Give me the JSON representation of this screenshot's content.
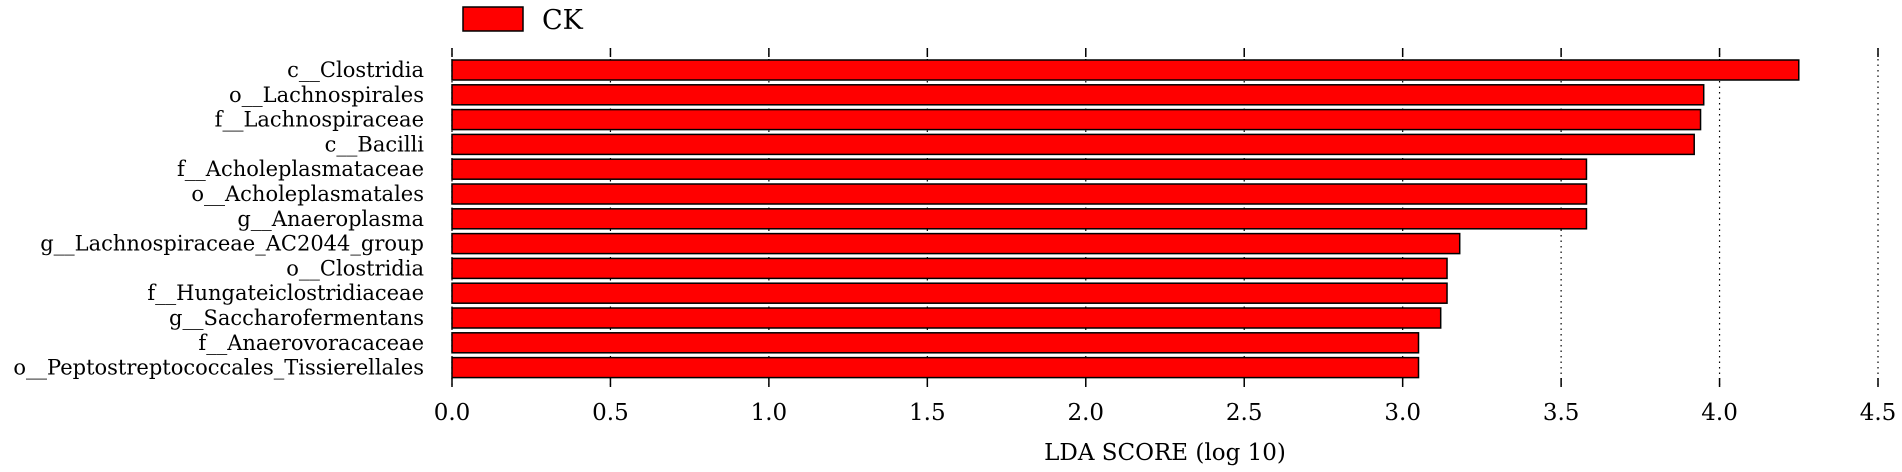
{
  "chart_data": {
    "type": "bar",
    "orientation": "horizontal",
    "categories": [
      "c__Clostridia",
      "o__Lachnospirales",
      "f__Lachnospiraceae",
      "c__Bacilli",
      "f__Acholeplasmataceae",
      "o__Acholeplasmatales",
      "g__Anaeroplasma",
      "g__Lachnospiraceae_AC2044_group",
      "o__Clostridia",
      "f__Hungateiclostridiaceae",
      "g__Saccharofermentans",
      "f__Anaerovoracaceae",
      "o__Peptostreptococcales_Tissierellales"
    ],
    "series": [
      {
        "name": "CK",
        "color": "#ff0000",
        "values": [
          4.25,
          3.95,
          3.94,
          3.92,
          3.58,
          3.58,
          3.58,
          3.18,
          3.14,
          3.14,
          3.12,
          3.05,
          3.05
        ]
      }
    ],
    "xlabel": "LDA SCORE (log 10)",
    "xlim": [
      0,
      4.5
    ],
    "xticks": [
      "0.0",
      "0.5",
      "1.0",
      "1.5",
      "2.0",
      "2.5",
      "3.0",
      "3.5",
      "4.0",
      "4.5"
    ],
    "grid": "vertical dotted lines at x ticks",
    "legend": {
      "position": "top-left",
      "entries": [
        "CK"
      ]
    }
  }
}
